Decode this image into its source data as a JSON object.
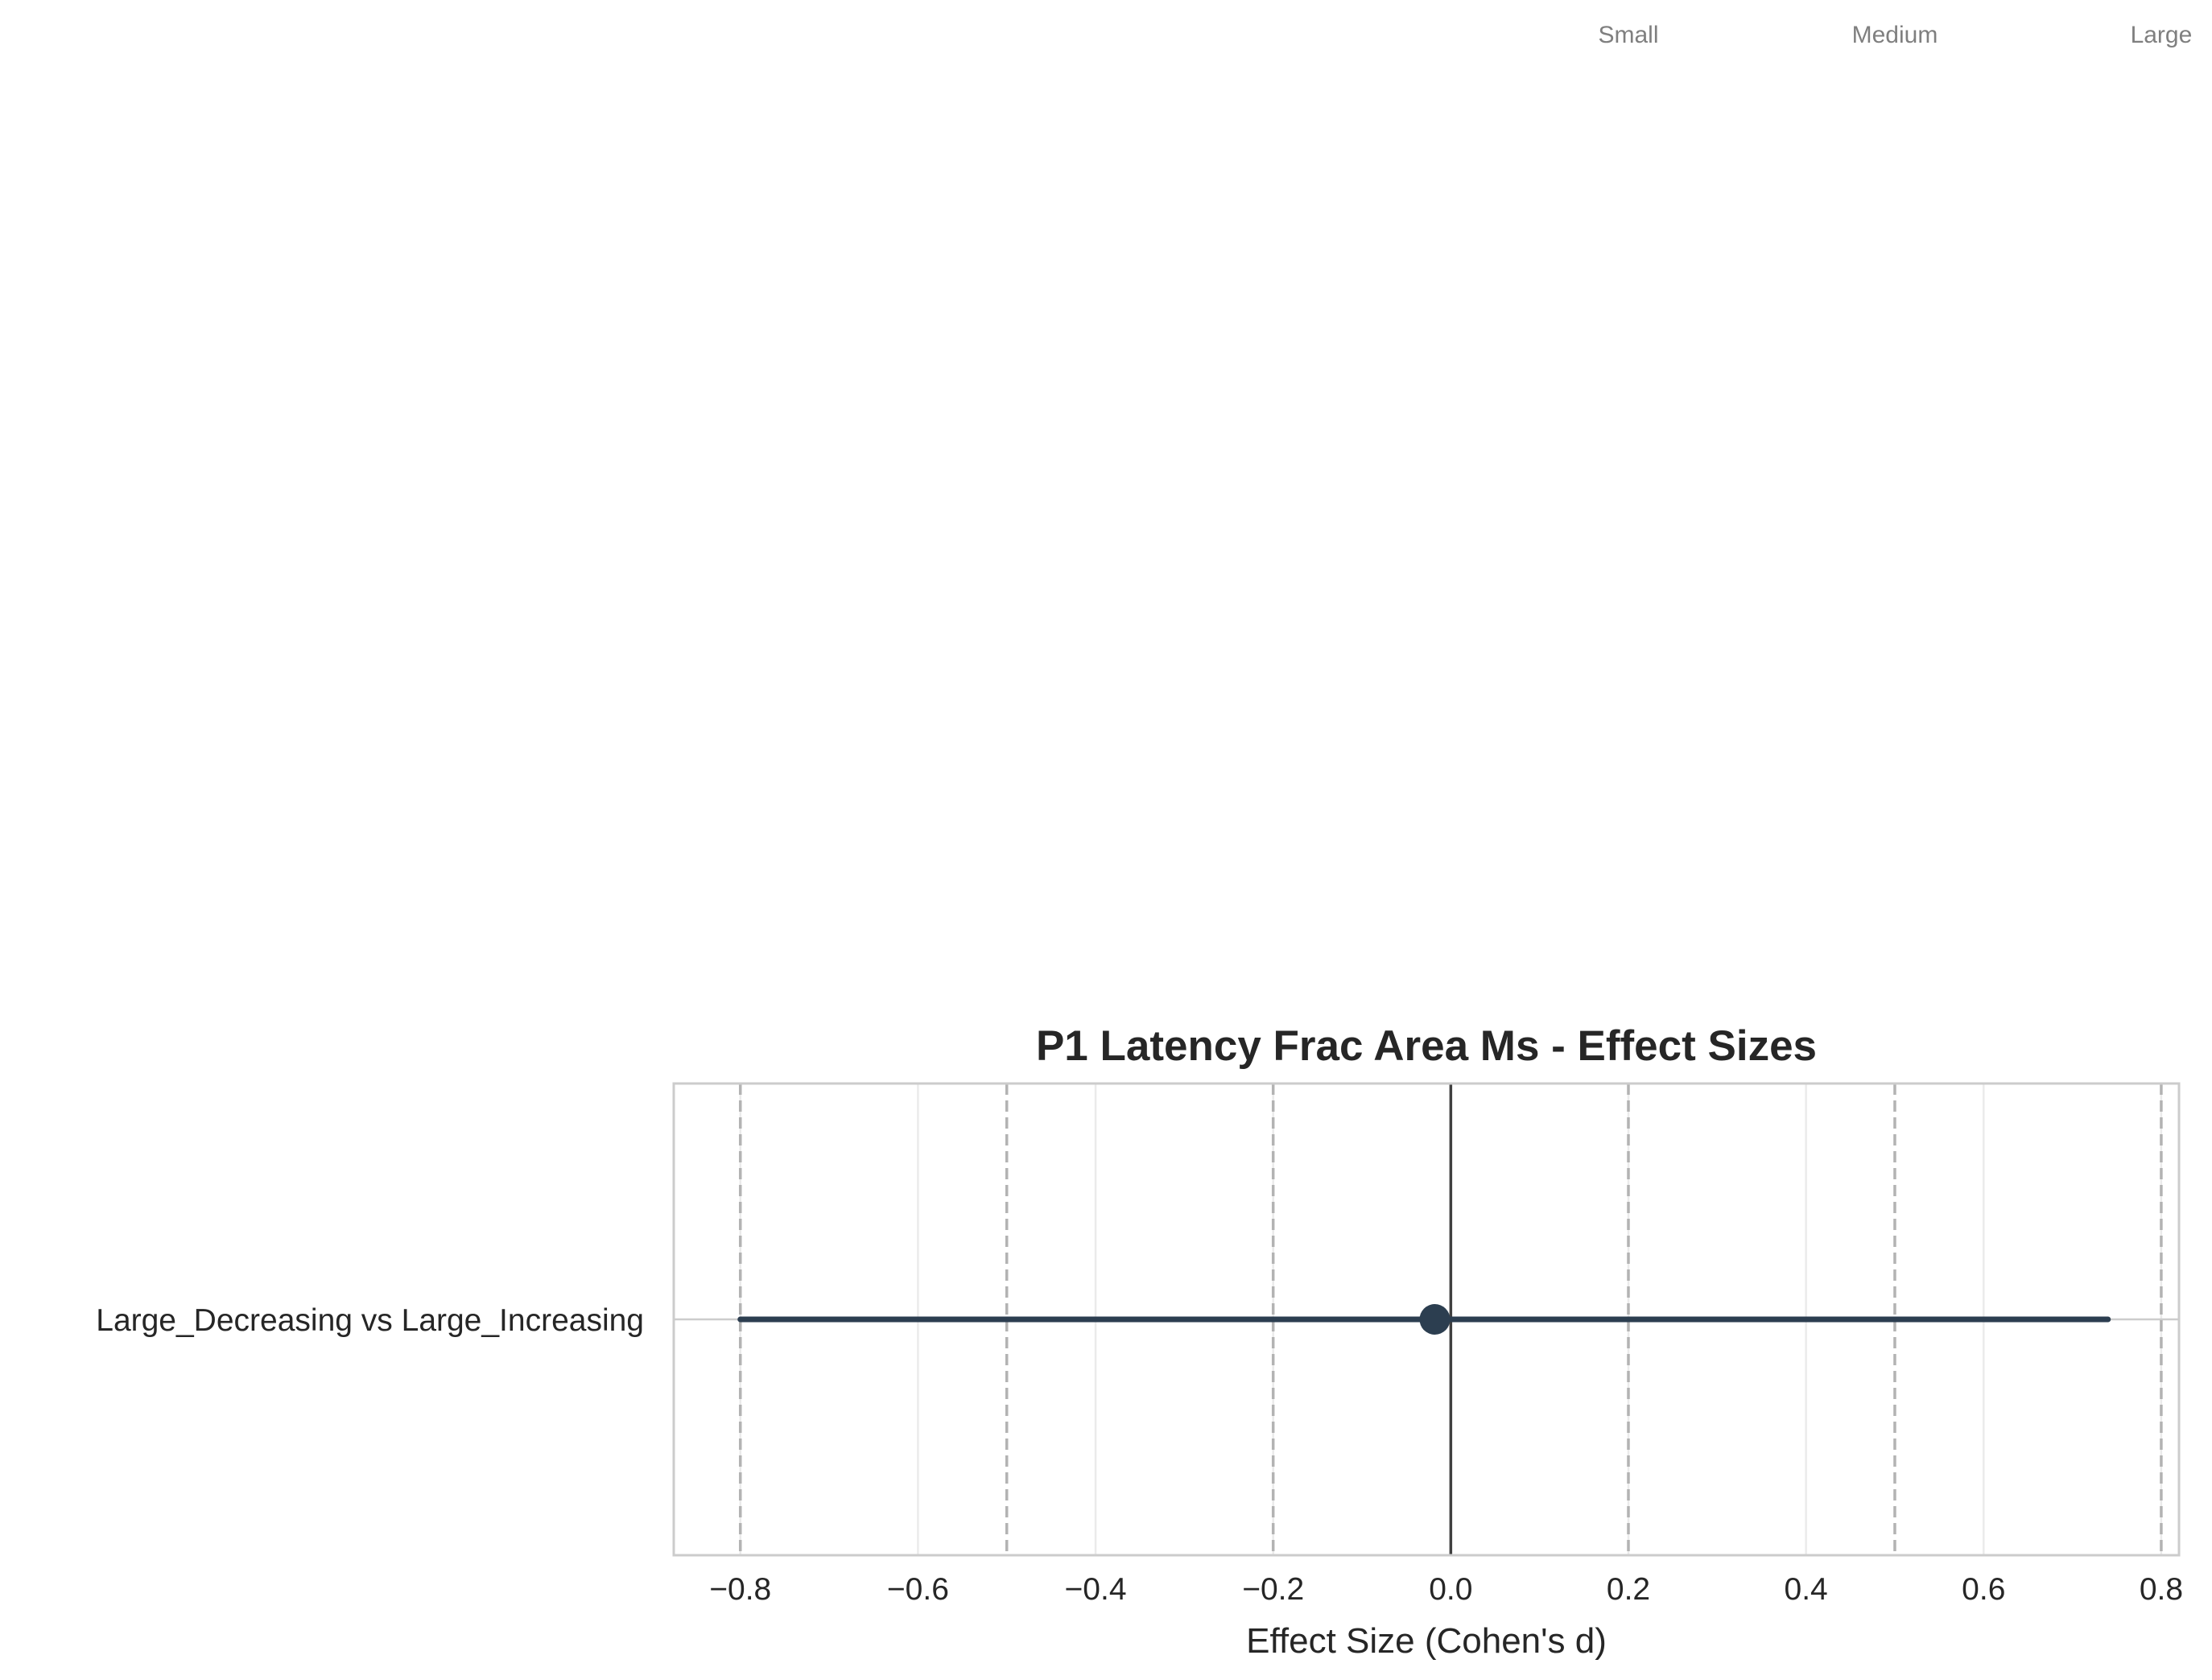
{
  "chart_data": {
    "type": "scatter",
    "title": "P1 Latency Frac Area Ms - Effect Sizes",
    "xlabel": "Effect Size (Cohen's d)",
    "ylabel": "",
    "xlim": [
      -0.875,
      0.82
    ],
    "x_ticks": [
      -0.8,
      -0.6,
      -0.4,
      -0.2,
      0.0,
      0.2,
      0.4,
      0.6,
      0.8
    ],
    "x_tick_labels": [
      "−0.8",
      "−0.6",
      "−0.4",
      "−0.2",
      "0.0",
      "0.2",
      "0.4",
      "0.6",
      "0.8"
    ],
    "categories": [
      "Large_Decreasing vs Large_Increasing"
    ],
    "points": [
      {
        "label": "Large_Decreasing vs Large_Increasing",
        "effect": -0.018,
        "ci_low": -0.8,
        "ci_high": 0.74
      }
    ],
    "reference_lines": [
      -0.8,
      -0.5,
      -0.2,
      0.2,
      0.5,
      0.8
    ],
    "zero_line": 0.0,
    "thresholds": [
      {
        "label": "Small",
        "value": 0.2
      },
      {
        "label": "Medium",
        "value": 0.5
      },
      {
        "label": "Large",
        "value": 0.8
      }
    ],
    "grid": true,
    "colors": {
      "point": "#2c3e50",
      "reference_line": "#b3b3b3",
      "zero_line": "#404040",
      "grid": "#ebebeb",
      "frame": "#cccccc",
      "threshold_text": "#7f7f7f"
    }
  }
}
